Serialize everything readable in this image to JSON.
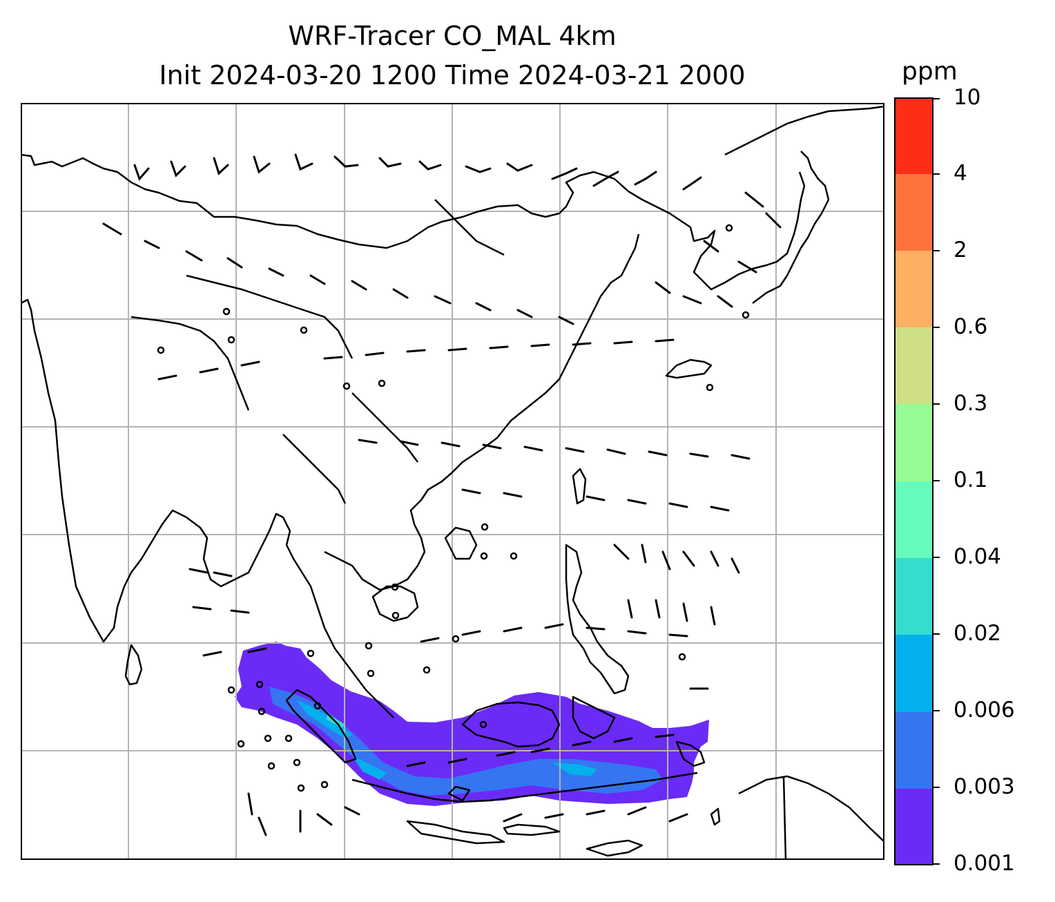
{
  "title_line1": "WRF-Tracer CO_MAL 4km",
  "title_line2": "Init 2024-03-20 1200 Time 2024-03-21 2000",
  "colorbar": {
    "unit": "ppm",
    "levels": [
      "0.001",
      "0.003",
      "0.006",
      "0.02",
      "0.04",
      "0.1",
      "0.3",
      "0.6",
      "2",
      "4",
      "10"
    ],
    "colors": [
      "#6a2bf6",
      "#3575f2",
      "#03b0eb",
      "#35ddd1",
      "#65fbbb",
      "#97fb95",
      "#cfe084",
      "#fdb061",
      "#ff733b",
      "#fe2d18"
    ]
  },
  "map": {
    "gridlines": true,
    "features": [
      "coastlines",
      "country-borders",
      "wind-barbs",
      "tracer-shading"
    ]
  }
}
